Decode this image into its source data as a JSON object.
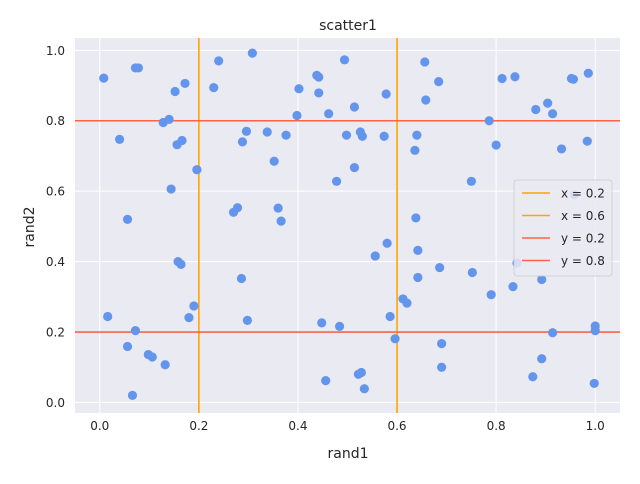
{
  "chart_data": {
    "type": "scatter",
    "title": "scatter1",
    "xlabel": "rand1",
    "ylabel": "rand2",
    "xlim": [
      -0.05,
      1.05
    ],
    "ylim": [
      -0.03,
      1.035
    ],
    "xticks": [
      0.0,
      0.2,
      0.4,
      0.6,
      0.8,
      1.0
    ],
    "yticks": [
      0.0,
      0.2,
      0.4,
      0.6,
      0.8,
      1.0
    ],
    "xtick_labels": [
      "0.0",
      "0.2",
      "0.4",
      "0.6",
      "0.8",
      "1.0"
    ],
    "ytick_labels": [
      "0.0",
      "0.2",
      "0.4",
      "0.6",
      "0.8",
      "1.0"
    ],
    "grid": true,
    "legend_position": "center-right",
    "point_color": "#6495ed",
    "points": [
      {
        "x": 0.008,
        "y": 0.921
      },
      {
        "x": 0.016,
        "y": 0.244
      },
      {
        "x": 0.04,
        "y": 0.747
      },
      {
        "x": 0.056,
        "y": 0.52
      },
      {
        "x": 0.056,
        "y": 0.159
      },
      {
        "x": 0.066,
        "y": 0.02
      },
      {
        "x": 0.072,
        "y": 0.95
      },
      {
        "x": 0.078,
        "y": 0.95
      },
      {
        "x": 0.072,
        "y": 0.204
      },
      {
        "x": 0.098,
        "y": 0.136
      },
      {
        "x": 0.106,
        "y": 0.129
      },
      {
        "x": 0.128,
        "y": 0.795
      },
      {
        "x": 0.132,
        "y": 0.107
      },
      {
        "x": 0.14,
        "y": 0.804
      },
      {
        "x": 0.144,
        "y": 0.606
      },
      {
        "x": 0.152,
        "y": 0.883
      },
      {
        "x": 0.156,
        "y": 0.732
      },
      {
        "x": 0.158,
        "y": 0.4
      },
      {
        "x": 0.164,
        "y": 0.392
      },
      {
        "x": 0.166,
        "y": 0.744
      },
      {
        "x": 0.172,
        "y": 0.906
      },
      {
        "x": 0.18,
        "y": 0.241
      },
      {
        "x": 0.19,
        "y": 0.274
      },
      {
        "x": 0.196,
        "y": 0.661
      },
      {
        "x": 0.23,
        "y": 0.894
      },
      {
        "x": 0.24,
        "y": 0.97
      },
      {
        "x": 0.27,
        "y": 0.54
      },
      {
        "x": 0.278,
        "y": 0.553
      },
      {
        "x": 0.286,
        "y": 0.352
      },
      {
        "x": 0.288,
        "y": 0.74
      },
      {
        "x": 0.296,
        "y": 0.77
      },
      {
        "x": 0.298,
        "y": 0.233
      },
      {
        "x": 0.308,
        "y": 0.992
      },
      {
        "x": 0.338,
        "y": 0.768
      },
      {
        "x": 0.352,
        "y": 0.685
      },
      {
        "x": 0.36,
        "y": 0.552
      },
      {
        "x": 0.366,
        "y": 0.515
      },
      {
        "x": 0.376,
        "y": 0.759
      },
      {
        "x": 0.398,
        "y": 0.815
      },
      {
        "x": 0.402,
        "y": 0.891
      },
      {
        "x": 0.438,
        "y": 0.929
      },
      {
        "x": 0.442,
        "y": 0.924
      },
      {
        "x": 0.442,
        "y": 0.879
      },
      {
        "x": 0.448,
        "y": 0.226
      },
      {
        "x": 0.456,
        "y": 0.062
      },
      {
        "x": 0.462,
        "y": 0.82
      },
      {
        "x": 0.478,
        "y": 0.628
      },
      {
        "x": 0.484,
        "y": 0.216
      },
      {
        "x": 0.494,
        "y": 0.973
      },
      {
        "x": 0.498,
        "y": 0.759
      },
      {
        "x": 0.514,
        "y": 0.839
      },
      {
        "x": 0.514,
        "y": 0.667
      },
      {
        "x": 0.522,
        "y": 0.08
      },
      {
        "x": 0.526,
        "y": 0.768
      },
      {
        "x": 0.528,
        "y": 0.085
      },
      {
        "x": 0.53,
        "y": 0.756
      },
      {
        "x": 0.534,
        "y": 0.039
      },
      {
        "x": 0.556,
        "y": 0.416
      },
      {
        "x": 0.574,
        "y": 0.756
      },
      {
        "x": 0.578,
        "y": 0.876
      },
      {
        "x": 0.58,
        "y": 0.452
      },
      {
        "x": 0.586,
        "y": 0.244
      },
      {
        "x": 0.596,
        "y": 0.181
      },
      {
        "x": 0.612,
        "y": 0.294
      },
      {
        "x": 0.62,
        "y": 0.282
      },
      {
        "x": 0.636,
        "y": 0.716
      },
      {
        "x": 0.64,
        "y": 0.759
      },
      {
        "x": 0.638,
        "y": 0.524
      },
      {
        "x": 0.642,
        "y": 0.432
      },
      {
        "x": 0.642,
        "y": 0.355
      },
      {
        "x": 0.656,
        "y": 0.967
      },
      {
        "x": 0.658,
        "y": 0.859
      },
      {
        "x": 0.684,
        "y": 0.911
      },
      {
        "x": 0.686,
        "y": 0.383
      },
      {
        "x": 0.69,
        "y": 0.167
      },
      {
        "x": 0.69,
        "y": 0.1
      },
      {
        "x": 0.75,
        "y": 0.628
      },
      {
        "x": 0.752,
        "y": 0.369
      },
      {
        "x": 0.786,
        "y": 0.8
      },
      {
        "x": 0.79,
        "y": 0.306
      },
      {
        "x": 0.8,
        "y": 0.731
      },
      {
        "x": 0.812,
        "y": 0.92
      },
      {
        "x": 0.834,
        "y": 0.329
      },
      {
        "x": 0.838,
        "y": 0.925
      },
      {
        "x": 0.842,
        "y": 0.396
      },
      {
        "x": 0.874,
        "y": 0.073
      },
      {
        "x": 0.88,
        "y": 0.832
      },
      {
        "x": 0.892,
        "y": 0.349
      },
      {
        "x": 0.892,
        "y": 0.124
      },
      {
        "x": 0.904,
        "y": 0.85
      },
      {
        "x": 0.914,
        "y": 0.82
      },
      {
        "x": 0.914,
        "y": 0.198
      },
      {
        "x": 0.932,
        "y": 0.72
      },
      {
        "x": 0.952,
        "y": 0.92
      },
      {
        "x": 0.956,
        "y": 0.918
      },
      {
        "x": 0.958,
        "y": 0.59
      },
      {
        "x": 0.984,
        "y": 0.742
      },
      {
        "x": 0.986,
        "y": 0.935
      },
      {
        "x": 0.998,
        "y": 0.054
      },
      {
        "x": 1.0,
        "y": 0.217
      },
      {
        "x": 1.0,
        "y": 0.204
      }
    ],
    "reference_lines": [
      {
        "label": "x = 0.2",
        "orientation": "vertical",
        "value": 0.2,
        "color": "#ffa500"
      },
      {
        "label": "x = 0.6",
        "orientation": "vertical",
        "value": 0.6,
        "color": "#ffa500"
      },
      {
        "label": "y = 0.2",
        "orientation": "horizontal",
        "value": 0.2,
        "color": "#ff6347"
      },
      {
        "label": "y = 0.8",
        "orientation": "horizontal",
        "value": 0.8,
        "color": "#ff6347"
      }
    ]
  }
}
